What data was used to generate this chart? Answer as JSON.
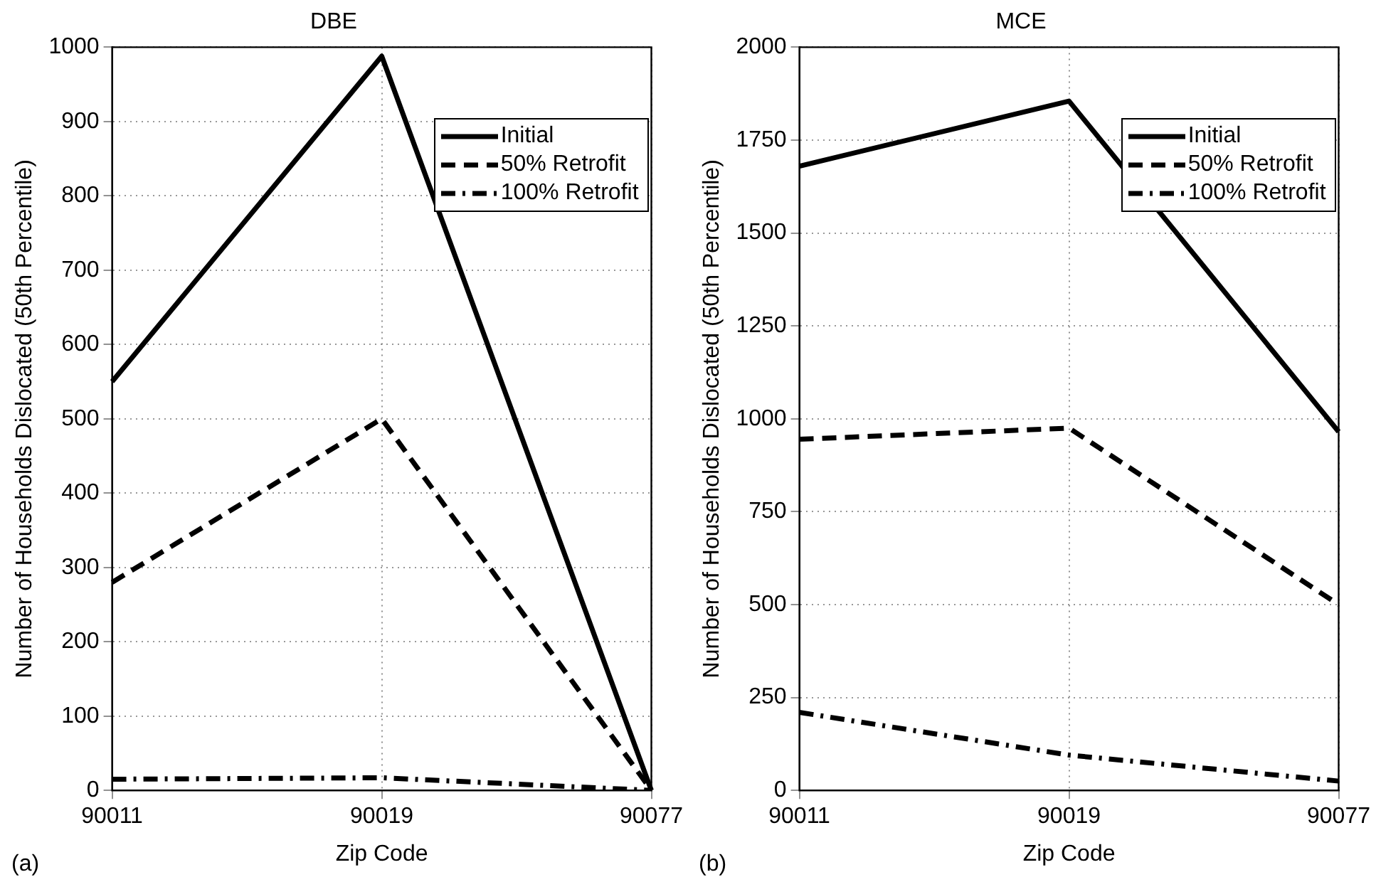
{
  "chart_data": [
    {
      "type": "line",
      "title": "DBE",
      "xlabel": "Zip Code",
      "ylabel": "Number of Households Dislocated (50th Percentile)",
      "categories": [
        "90011",
        "90019",
        "90077"
      ],
      "series": [
        {
          "name": "Initial",
          "color": "#000000",
          "line_style": "solid",
          "values": [
            550,
            988,
            0
          ]
        },
        {
          "name": "50% Retrofit",
          "color": "#000000",
          "line_style": "dashed",
          "values": [
            280,
            500,
            0
          ]
        },
        {
          "name": "100% Retrofit",
          "color": "#000000",
          "line_style": "dashdot",
          "values": [
            15,
            17,
            0
          ]
        }
      ],
      "ylim": [
        0,
        1000
      ],
      "yticks": [
        0,
        100,
        200,
        300,
        400,
        500,
        600,
        700,
        800,
        900,
        1000
      ],
      "grid": true,
      "legend": "top right",
      "marker": "none",
      "annotations": [
        "(a)"
      ]
    },
    {
      "type": "line",
      "title": "MCE",
      "xlabel": "Zip Code",
      "ylabel": "Number of Households Dislocated (50th Percentile)",
      "categories": [
        "90011",
        "90019",
        "90077"
      ],
      "series": [
        {
          "name": "Initial",
          "color": "#000000",
          "line_style": "solid",
          "values": [
            1680,
            1855,
            965
          ]
        },
        {
          "name": "50% Retrofit",
          "color": "#000000",
          "line_style": "dashed",
          "values": [
            945,
            975,
            500
          ]
        },
        {
          "name": "100% Retrofit",
          "color": "#000000",
          "line_style": "dashdot",
          "values": [
            210,
            95,
            25
          ]
        }
      ],
      "ylim": [
        0,
        2000
      ],
      "yticks": [
        0,
        250,
        500,
        750,
        1000,
        1250,
        1500,
        1750,
        2000
      ],
      "grid": true,
      "legend": "top right",
      "marker": "none",
      "annotations": [
        "(b)"
      ]
    }
  ]
}
